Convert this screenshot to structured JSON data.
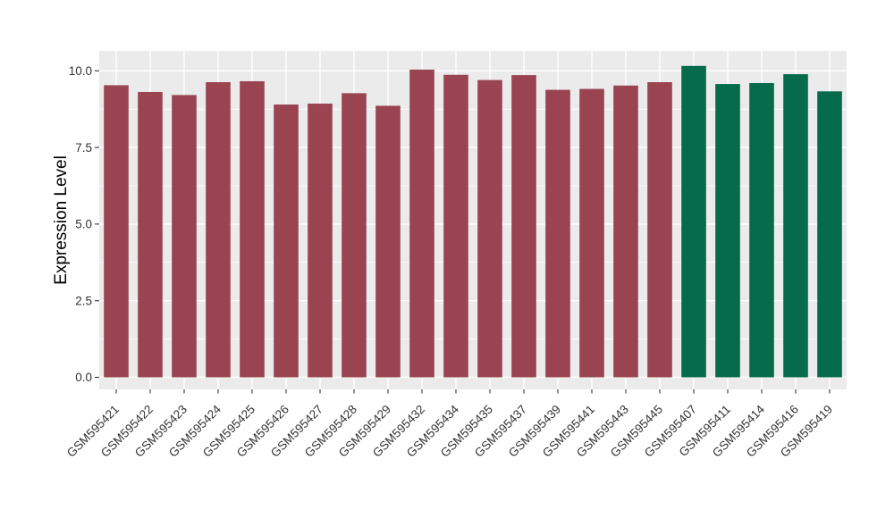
{
  "chart_data": {
    "type": "bar",
    "title": "",
    "xlabel": "",
    "ylabel": "Expression Level",
    "ylim": [
      0,
      10.65
    ],
    "grid": "major+minor horizontal, major vertical at categories",
    "legend": "none",
    "ytick_values": [
      0,
      2.5,
      5,
      7.5,
      10
    ],
    "ytick_labels": [
      "0.0",
      "2.5",
      "5.0",
      "7.5",
      "10.0"
    ],
    "minor_tick_values": [
      1.25,
      3.75,
      6.25,
      8.75
    ],
    "categories": [
      "GSM595421",
      "GSM595422",
      "GSM595423",
      "GSM595424",
      "GSM595425",
      "GSM595426",
      "GSM595427",
      "GSM595428",
      "GSM595429",
      "GSM595432",
      "GSM595434",
      "GSM595435",
      "GSM595437",
      "GSM595439",
      "GSM595441",
      "GSM595443",
      "GSM595445",
      "GSM595407",
      "GSM595411",
      "GSM595414",
      "GSM595416",
      "GSM595419"
    ],
    "values": [
      9.53,
      9.31,
      9.21,
      9.63,
      9.66,
      8.9,
      8.93,
      9.27,
      8.86,
      10.04,
      9.87,
      9.7,
      9.86,
      9.38,
      9.41,
      9.52,
      9.63,
      10.16,
      9.57,
      9.6,
      9.89,
      9.33
    ],
    "bar_colors": [
      "#9A4451",
      "#9A4451",
      "#9A4451",
      "#9A4451",
      "#9A4451",
      "#9A4451",
      "#9A4451",
      "#9A4451",
      "#9A4451",
      "#9A4451",
      "#9A4451",
      "#9A4451",
      "#9A4451",
      "#9A4451",
      "#9A4451",
      "#9A4451",
      "#9A4451",
      "#066B4B",
      "#066B4B",
      "#066B4B",
      "#066B4B",
      "#066B4B"
    ]
  },
  "style": {
    "page_bg": "#FFFFFF",
    "panel_bg": "#EBEBEB",
    "grid_color": "#FFFFFF",
    "axis_text_color": "#333333",
    "axis_title_color": "#000000",
    "tick_mark_color": "#333333",
    "bar_color_red": "#9A4451",
    "bar_color_green": "#066B4B"
  }
}
